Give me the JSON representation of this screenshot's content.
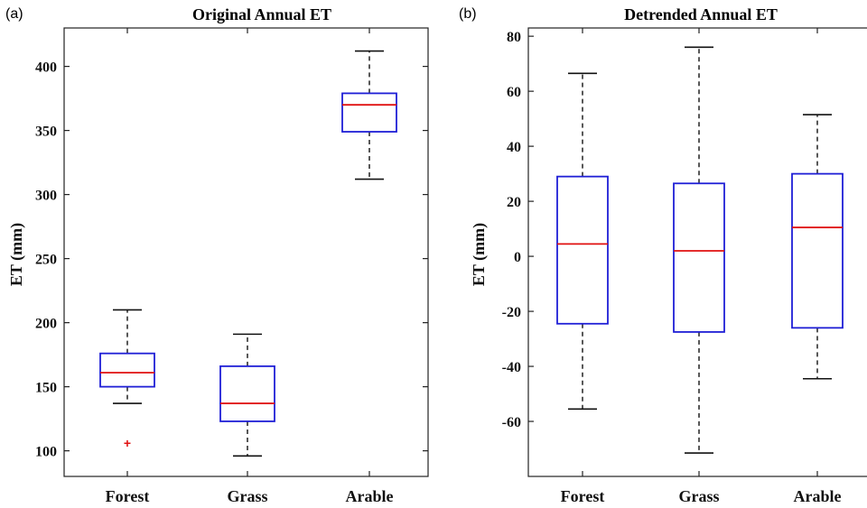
{
  "chart_data": [
    {
      "type": "box",
      "panel_label": "(a)",
      "title": "Original Annual ET",
      "xlabel": "",
      "ylabel": "ET (mm)",
      "ylim": [
        80,
        430
      ],
      "yticks": [
        100,
        150,
        200,
        250,
        300,
        350,
        400
      ],
      "categories": [
        "Forest",
        "Grass",
        "Arable"
      ],
      "boxes": [
        {
          "category": "Forest",
          "whisker_low": 137,
          "q1": 150,
          "median": 161,
          "q3": 176,
          "whisker_high": 210,
          "outliers": [
            106
          ]
        },
        {
          "category": "Grass",
          "whisker_low": 96,
          "q1": 123,
          "median": 137,
          "q3": 166,
          "whisker_high": 191,
          "outliers": []
        },
        {
          "category": "Arable",
          "whisker_low": 312,
          "q1": 349,
          "median": 370,
          "q3": 379,
          "whisker_high": 412,
          "outliers": []
        }
      ],
      "colors": {
        "box": "#1f1fd6",
        "median": "#e01010",
        "whisker": "#111111",
        "outlier": "#e01010"
      }
    },
    {
      "type": "box",
      "panel_label": "(b)",
      "title": "Detrended Annual ET",
      "xlabel": "",
      "ylabel": "ET (mm)",
      "ylim": [
        -80,
        83
      ],
      "yticks": [
        -60,
        -40,
        -20,
        0,
        20,
        40,
        60,
        80
      ],
      "categories": [
        "Forest",
        "Grass",
        "Arable"
      ],
      "boxes": [
        {
          "category": "Forest",
          "whisker_low": -55.5,
          "q1": -24.5,
          "median": 4.5,
          "q3": 29,
          "whisker_high": 66.5,
          "outliers": []
        },
        {
          "category": "Grass",
          "whisker_low": -71.5,
          "q1": -27.5,
          "median": 2,
          "q3": 26.5,
          "whisker_high": 76,
          "outliers": []
        },
        {
          "category": "Arable",
          "whisker_low": -44.5,
          "q1": -26,
          "median": 10.5,
          "q3": 30,
          "whisker_high": 51.5,
          "outliers": []
        }
      ],
      "colors": {
        "box": "#1f1fd6",
        "median": "#e01010",
        "whisker": "#111111",
        "outlier": "#e01010"
      }
    }
  ]
}
